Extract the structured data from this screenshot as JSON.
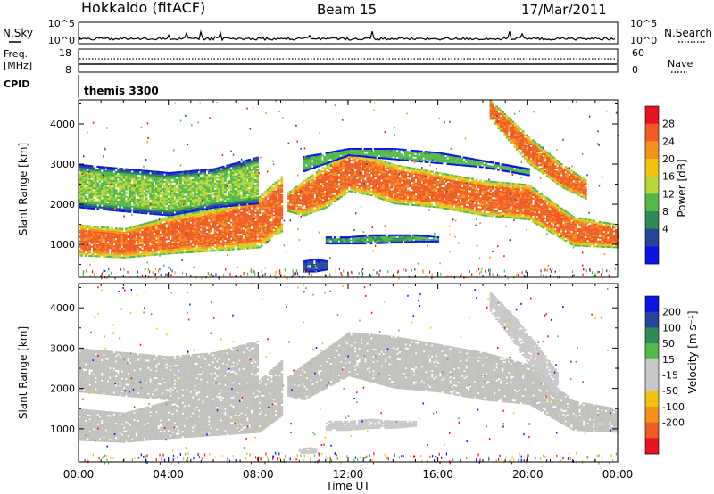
{
  "header": {
    "station": "Hokkaido (fitACF)",
    "beam": "Beam 15",
    "date": "17/Mar/2011"
  },
  "noise_panel": {
    "left_label": "N.Sky",
    "right_label": "N.Search",
    "ticks_left": [
      "10^5",
      "10^0"
    ],
    "ticks_right": [
      "10^5",
      "10^0"
    ]
  },
  "freq_panel": {
    "left_label_line1": "Freq.",
    "left_label_line2": "[MHz]",
    "right_label": "Nave",
    "ticks_left": [
      "18",
      "8"
    ],
    "ticks_right": [
      "60",
      "0"
    ]
  },
  "cpid_panel": {
    "label": "CPID",
    "value": "themis 3300"
  },
  "x_axis": {
    "label": "Time UT",
    "ticks": [
      "00:00",
      "04:00",
      "08:00",
      "12:00",
      "16:00",
      "20:00",
      "00:00"
    ]
  },
  "colors": {
    "power_scale": [
      "#0a14e6",
      "#23469b",
      "#2e8b57",
      "#52b848",
      "#b8d63a",
      "#f2c20f",
      "#f5901c",
      "#f05a23",
      "#e6141e"
    ],
    "velocity_scale": [
      "#e6141e",
      "#f05a23",
      "#f5901c",
      "#f2c20f",
      "#c8c8c8",
      "#c8c8c8",
      "#52b848",
      "#2e8b57",
      "#23469b",
      "#0a14e6"
    ],
    "ground_scatter": "#c0c0bc"
  },
  "chart_data": [
    {
      "type": "heatmap",
      "quantity": "power",
      "ylabel": "Slant Range [km]",
      "xlabel": "Time UT",
      "x_ticks": [
        "00:00",
        "04:00",
        "08:00",
        "12:00",
        "16:00",
        "20:00",
        "00:00"
      ],
      "xlim_hours": [
        0,
        24
      ],
      "y_ticks": [
        1000,
        2000,
        3000,
        4000
      ],
      "ylim": [
        180,
        4600
      ],
      "colorbar": {
        "label": "Power [dB]",
        "ticks": [
          4,
          8,
          12,
          16,
          20,
          24,
          28
        ]
      },
      "regions": [
        {
          "name": "near_band",
          "t": [
            0,
            2,
            4,
            6,
            8,
            9
          ],
          "low": [
            700,
            650,
            750,
            820,
            900,
            1300
          ],
          "high": [
            1500,
            1400,
            1700,
            1900,
            2200,
            2700
          ],
          "level": 29
        },
        {
          "name": "mid_band",
          "t": [
            0,
            2,
            4,
            6,
            8
          ],
          "low": [
            1900,
            1800,
            1700,
            1900,
            2000
          ],
          "high": [
            3000,
            2900,
            2800,
            2900,
            3200
          ],
          "level": 16
        },
        {
          "name": "f_region_arc",
          "t": [
            9.3,
            10,
            11,
            12,
            13,
            14,
            16,
            18,
            20,
            22,
            24
          ],
          "low": [
            1800,
            1700,
            1900,
            2300,
            2200,
            2000,
            1900,
            1700,
            1600,
            950,
            900
          ],
          "high": [
            2300,
            2600,
            3000,
            3300,
            3200,
            3000,
            2800,
            2600,
            2500,
            1700,
            1500
          ],
          "level": 29
        },
        {
          "name": "arc_top_edge",
          "t": [
            10,
            12,
            14,
            16,
            18,
            20
          ],
          "low": [
            2800,
            3200,
            3100,
            3000,
            2900,
            2700
          ],
          "high": [
            3200,
            3400,
            3400,
            3300,
            3100,
            2900
          ],
          "level": 14
        },
        {
          "name": "e_region_patch",
          "t": [
            11,
            12,
            13,
            15,
            16
          ],
          "low": [
            1000,
            1000,
            1000,
            1050,
            1050
          ],
          "high": [
            1200,
            1200,
            1250,
            1250,
            1200
          ],
          "level": 12
        },
        {
          "name": "diagonal_streak",
          "t": [
            18.3,
            20,
            21.5,
            22.6
          ],
          "low": [
            4100,
            3000,
            2400,
            2100
          ],
          "high": [
            4600,
            3700,
            3000,
            2600
          ],
          "level": 29
        },
        {
          "name": "near_range_noise",
          "t": [
            10,
            10.5,
            11
          ],
          "low": [
            300,
            300,
            350
          ],
          "high": [
            600,
            650,
            600
          ],
          "level": 6
        }
      ]
    },
    {
      "type": "heatmap",
      "quantity": "velocity",
      "ylabel": "Slant Range [km]",
      "xlabel": "Time UT",
      "x_ticks": [
        "00:00",
        "04:00",
        "08:00",
        "12:00",
        "16:00",
        "20:00",
        "00:00"
      ],
      "xlim_hours": [
        0,
        24
      ],
      "y_ticks": [
        1000,
        2000,
        3000,
        4000
      ],
      "ylim": [
        180,
        4600
      ],
      "colorbar": {
        "label": "Velocity [m s⁻¹]",
        "ticks": [
          200,
          100,
          50,
          15,
          -15,
          -50,
          -100,
          -200
        ]
      },
      "regions": [
        {
          "name": "ground_scatter_near",
          "t": [
            0,
            2,
            4,
            6,
            8,
            9
          ],
          "low": [
            700,
            650,
            750,
            820,
            900,
            1300
          ],
          "high": [
            1500,
            1400,
            1700,
            1900,
            2200,
            2700
          ],
          "level": 0
        },
        {
          "name": "ground_scatter_mid",
          "t": [
            0,
            2,
            4,
            6,
            8
          ],
          "low": [
            1900,
            1800,
            1700,
            1900,
            2000
          ],
          "high": [
            3000,
            2900,
            2800,
            2900,
            3200
          ],
          "level": 0
        },
        {
          "name": "ground_scatter_arc",
          "t": [
            9.3,
            10,
            12,
            14,
            16,
            18,
            20,
            22,
            24
          ],
          "low": [
            1800,
            1700,
            2300,
            2000,
            1900,
            1700,
            1600,
            950,
            900
          ],
          "high": [
            2300,
            2600,
            3400,
            3300,
            3100,
            2900,
            2600,
            1700,
            1500
          ],
          "level": 0
        },
        {
          "name": "e_region_negative",
          "t": [
            11,
            12,
            13,
            14,
            15
          ],
          "low": [
            950,
            950,
            1000,
            1000,
            1050
          ],
          "high": [
            1200,
            1200,
            1250,
            1200,
            1200
          ],
          "level": -30
        },
        {
          "name": "diagonal_positive",
          "t": [
            18.3,
            19.5,
            20.5,
            21.3
          ],
          "low": [
            3900,
            3000,
            2200,
            1800
          ],
          "high": [
            4400,
            3700,
            3000,
            2400
          ],
          "level": 20
        },
        {
          "name": "small_positive_patch",
          "t": [
            9.8,
            10.2,
            10.6
          ],
          "low": [
            380,
            380,
            400
          ],
          "high": [
            520,
            540,
            520
          ],
          "level": 20
        }
      ]
    }
  ]
}
